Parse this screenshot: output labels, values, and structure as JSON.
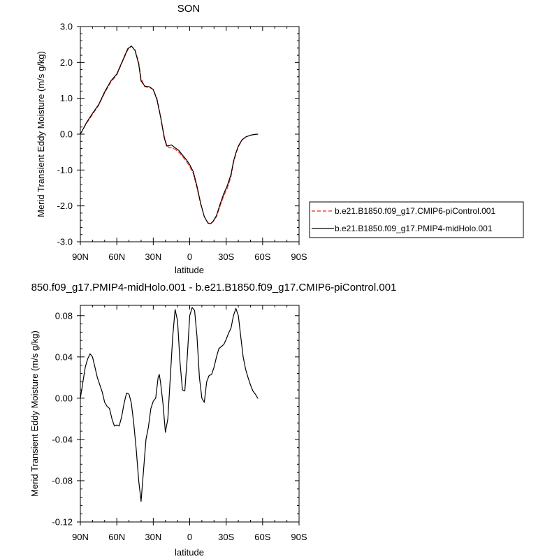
{
  "chart_data": [
    {
      "type": "line",
      "title": "SON",
      "xlabel": "latitude",
      "ylabel": "Merid Transient Eddy Moisture (m/s g/kg)",
      "xlim": [
        90,
        -90
      ],
      "ylim": [
        -3.0,
        3.0
      ],
      "x_ticks": [
        90,
        60,
        30,
        0,
        -30,
        -60,
        -90
      ],
      "x_tick_labels": [
        "90N",
        "60N",
        "30N",
        "0",
        "30S",
        "60S",
        "90S"
      ],
      "y_ticks": [
        -3.0,
        -2.0,
        -1.0,
        0.0,
        1.0,
        2.0,
        3.0
      ],
      "y_tick_labels": [
        "-3.0",
        "-2.0",
        "-1.0",
        "0.0",
        "1.0",
        "2.0",
        "3.0"
      ],
      "grid": false,
      "legend_position": "right",
      "series": [
        {
          "name": "b.e21.B1850.f09_g17.CMIP6-piControl.001",
          "color": "#e8291c",
          "dash": "dashed",
          "points": [
            [
              90,
              0.0
            ],
            [
              85,
              0.3
            ],
            [
              80,
              0.55
            ],
            [
              75,
              0.8
            ],
            [
              70,
              1.15
            ],
            [
              65,
              1.45
            ],
            [
              60,
              1.65
            ],
            [
              55,
              2.05
            ],
            [
              51,
              2.35
            ],
            [
              48,
              2.45
            ],
            [
              45,
              2.35
            ],
            [
              42,
              2.0
            ],
            [
              40,
              1.55
            ],
            [
              37,
              1.32
            ],
            [
              33,
              1.3
            ],
            [
              30,
              1.25
            ],
            [
              27,
              1.0
            ],
            [
              24,
              0.5
            ],
            [
              21,
              -0.05
            ],
            [
              19,
              -0.3
            ],
            [
              17,
              -0.38
            ],
            [
              15,
              -0.38
            ],
            [
              12,
              -0.42
            ],
            [
              9,
              -0.5
            ],
            [
              6,
              -0.62
            ],
            [
              3,
              -0.75
            ],
            [
              0,
              -0.9
            ],
            [
              -3,
              -1.1
            ],
            [
              -6,
              -1.5
            ],
            [
              -9,
              -1.95
            ],
            [
              -12,
              -2.3
            ],
            [
              -15,
              -2.47
            ],
            [
              -17,
              -2.49
            ],
            [
              -19,
              -2.45
            ],
            [
              -22,
              -2.3
            ],
            [
              -25,
              -2.0
            ],
            [
              -28,
              -1.72
            ],
            [
              -31,
              -1.5
            ],
            [
              -34,
              -1.18
            ],
            [
              -36,
              -0.8
            ],
            [
              -38,
              -0.55
            ],
            [
              -40,
              -0.35
            ],
            [
              -43,
              -0.17
            ],
            [
              -46,
              -0.08
            ],
            [
              -50,
              -0.03
            ],
            [
              -53,
              -0.01
            ],
            [
              -56,
              0.0
            ]
          ]
        },
        {
          "name": "b.e21.B1850.f09_g17.PMIP4-midHolo.001",
          "color": "#000000",
          "dash": "solid",
          "points": [
            [
              90,
              0.0
            ],
            [
              85,
              0.32
            ],
            [
              80,
              0.58
            ],
            [
              75,
              0.82
            ],
            [
              70,
              1.18
            ],
            [
              65,
              1.48
            ],
            [
              60,
              1.68
            ],
            [
              55,
              2.07
            ],
            [
              51,
              2.38
            ],
            [
              48,
              2.46
            ],
            [
              45,
              2.33
            ],
            [
              42,
              1.95
            ],
            [
              40,
              1.48
            ],
            [
              37,
              1.34
            ],
            [
              33,
              1.32
            ],
            [
              30,
              1.24
            ],
            [
              27,
              0.96
            ],
            [
              24,
              0.48
            ],
            [
              21,
              -0.1
            ],
            [
              19,
              -0.33
            ],
            [
              17,
              -0.32
            ],
            [
              15,
              -0.3
            ],
            [
              12,
              -0.38
            ],
            [
              9,
              -0.45
            ],
            [
              6,
              -0.58
            ],
            [
              3,
              -0.7
            ],
            [
              0,
              -0.85
            ],
            [
              -3,
              -1.05
            ],
            [
              -6,
              -1.45
            ],
            [
              -9,
              -1.92
            ],
            [
              -12,
              -2.3
            ],
            [
              -15,
              -2.48
            ],
            [
              -17,
              -2.5
            ],
            [
              -19,
              -2.44
            ],
            [
              -22,
              -2.27
            ],
            [
              -25,
              -1.95
            ],
            [
              -28,
              -1.66
            ],
            [
              -31,
              -1.43
            ],
            [
              -34,
              -1.12
            ],
            [
              -36,
              -0.76
            ],
            [
              -38,
              -0.52
            ],
            [
              -40,
              -0.33
            ],
            [
              -43,
              -0.16
            ],
            [
              -46,
              -0.08
            ],
            [
              -50,
              -0.03
            ],
            [
              -53,
              -0.01
            ],
            [
              -56,
              0.0
            ]
          ]
        }
      ]
    },
    {
      "type": "line",
      "title": "850.f09_g17.PMIP4-midHolo.001 - b.e21.B1850.f09_g17.CMIP6-piControl.001",
      "xlabel": "latitude",
      "ylabel": "Merid Transient Eddy Moisture (m/s g/kg)",
      "xlim": [
        90,
        -90
      ],
      "ylim": [
        -0.12,
        0.09
      ],
      "x_ticks": [
        90,
        60,
        30,
        0,
        -30,
        -60,
        -90
      ],
      "x_tick_labels": [
        "90N",
        "60N",
        "30N",
        "0",
        "30S",
        "60S",
        "90S"
      ],
      "y_ticks": [
        -0.12,
        -0.08,
        -0.04,
        0.0,
        0.04,
        0.08
      ],
      "y_tick_labels": [
        "-0.12",
        "-0.08",
        "-0.04",
        "0.00",
        "0.04",
        "0.08"
      ],
      "grid": false,
      "series": [
        {
          "color": "#000000",
          "dash": "solid",
          "points": [
            [
              90,
              0.0
            ],
            [
              88,
              0.015
            ],
            [
              86,
              0.03
            ],
            [
              84,
              0.038
            ],
            [
              82,
              0.043
            ],
            [
              80,
              0.04
            ],
            [
              78,
              0.03
            ],
            [
              76,
              0.02
            ],
            [
              74,
              0.013
            ],
            [
              72,
              0.006
            ],
            [
              70,
              -0.004
            ],
            [
              68,
              -0.008
            ],
            [
              66,
              -0.01
            ],
            [
              64,
              -0.02
            ],
            [
              62,
              -0.027
            ],
            [
              60,
              -0.026
            ],
            [
              58,
              -0.027
            ],
            [
              56,
              -0.018
            ],
            [
              54,
              -0.005
            ],
            [
              52,
              0.005
            ],
            [
              50,
              0.004
            ],
            [
              48,
              -0.005
            ],
            [
              46,
              -0.025
            ],
            [
              44,
              -0.05
            ],
            [
              42,
              -0.08
            ],
            [
              40,
              -0.1
            ],
            [
              38,
              -0.07
            ],
            [
              36,
              -0.04
            ],
            [
              34,
              -0.028
            ],
            [
              32,
              -0.01
            ],
            [
              30,
              -0.003
            ],
            [
              28,
              0.0
            ],
            [
              26,
              0.02
            ],
            [
              25,
              0.023
            ],
            [
              24,
              0.015
            ],
            [
              22,
              -0.005
            ],
            [
              20,
              -0.033
            ],
            [
              18,
              -0.02
            ],
            [
              16,
              0.02
            ],
            [
              14,
              0.06
            ],
            [
              12,
              0.086
            ],
            [
              10,
              0.075
            ],
            [
              8,
              0.035
            ],
            [
              6,
              0.008
            ],
            [
              4,
              0.007
            ],
            [
              2,
              0.04
            ],
            [
              0,
              0.08
            ],
            [
              -2,
              0.088
            ],
            [
              -4,
              0.085
            ],
            [
              -6,
              0.06
            ],
            [
              -8,
              0.02
            ],
            [
              -10,
              0.0
            ],
            [
              -12,
              -0.004
            ],
            [
              -14,
              0.016
            ],
            [
              -16,
              0.022
            ],
            [
              -18,
              0.023
            ],
            [
              -20,
              0.03
            ],
            [
              -22,
              0.04
            ],
            [
              -24,
              0.048
            ],
            [
              -26,
              0.05
            ],
            [
              -28,
              0.052
            ],
            [
              -30,
              0.057
            ],
            [
              -32,
              0.063
            ],
            [
              -34,
              0.068
            ],
            [
              -36,
              0.08
            ],
            [
              -38,
              0.087
            ],
            [
              -40,
              0.08
            ],
            [
              -42,
              0.06
            ],
            [
              -44,
              0.04
            ],
            [
              -46,
              0.028
            ],
            [
              -48,
              0.02
            ],
            [
              -50,
              0.013
            ],
            [
              -52,
              0.007
            ],
            [
              -54,
              0.004
            ],
            [
              -56,
              0.0
            ]
          ]
        }
      ]
    }
  ]
}
